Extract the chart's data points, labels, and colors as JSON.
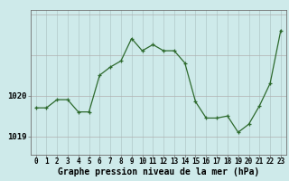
{
  "x": [
    0,
    1,
    2,
    3,
    4,
    5,
    6,
    7,
    8,
    9,
    10,
    11,
    12,
    13,
    14,
    15,
    16,
    17,
    18,
    19,
    20,
    21,
    22,
    23
  ],
  "y": [
    1019.7,
    1019.7,
    1019.9,
    1019.9,
    1019.6,
    1019.6,
    1020.5,
    1020.7,
    1020.85,
    1021.4,
    1021.1,
    1021.25,
    1021.1,
    1021.1,
    1020.8,
    1019.85,
    1019.45,
    1019.45,
    1019.5,
    1019.1,
    1019.3,
    1019.75,
    1020.3,
    1021.6
  ],
  "line_color": "#2d6a2d",
  "marker_color": "#2d6a2d",
  "bg_color": "#ceeaea",
  "grid_color_v": "#b0c8c8",
  "grid_color_h": "#b0b0b0",
  "ylabel_ticks": [
    1019,
    1020
  ],
  "xlabel_label": "Graphe pression niveau de la mer (hPa)",
  "xlabel_fontsize": 7,
  "ylabel_fontsize": 6.5,
  "tick_fontsize": 5.5,
  "ylim": [
    1018.55,
    1022.1
  ],
  "xlim": [
    -0.5,
    23.5
  ]
}
